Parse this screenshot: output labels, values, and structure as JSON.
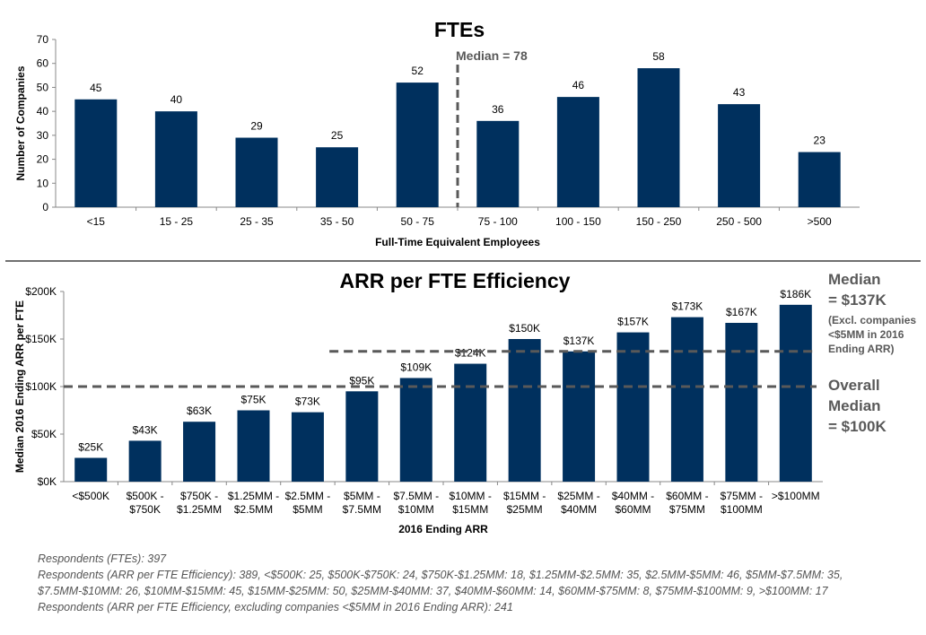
{
  "chart_data": [
    {
      "type": "bar",
      "title": "FTEs",
      "xlabel": "Full-Time Equivalent Employees",
      "ylabel": "Number of Companies",
      "ylim": [
        0,
        70
      ],
      "yticks": [
        0,
        10,
        20,
        30,
        40,
        50,
        60,
        70
      ],
      "categories": [
        "<15",
        "15 - 25",
        "25 - 35",
        "35 - 50",
        "50 - 75",
        "75 - 100",
        "100 - 150",
        "150 - 250",
        "250 - 500",
        ">500"
      ],
      "values": [
        45,
        40,
        29,
        25,
        52,
        36,
        46,
        58,
        43,
        23
      ],
      "data_labels": [
        "45",
        "40",
        "29",
        "25",
        "52",
        "36",
        "46",
        "58",
        "43",
        "23"
      ],
      "bar_color": "#00305e",
      "grid": false,
      "annotations": [
        {
          "text": "Median = 78",
          "type": "vertical-dashed-line",
          "position": "between 50 - 75 and 75 - 100"
        }
      ]
    },
    {
      "type": "bar",
      "title": "ARR per FTE Efficiency",
      "xlabel": "2016 Ending ARR",
      "ylabel": "Median 2016 Ending ARR per FTE",
      "ylim": [
        0,
        200
      ],
      "yticks": [
        0,
        50,
        100,
        150,
        200
      ],
      "ytick_labels": [
        "$0K",
        "$50K",
        "$100K",
        "$150K",
        "$200K"
      ],
      "categories": [
        [
          "<$500K"
        ],
        [
          "$500K -",
          "$750K"
        ],
        [
          "$750K -",
          "$1.25MM"
        ],
        [
          "$1.25MM -",
          "$2.5MM"
        ],
        [
          "$2.5MM -",
          "$5MM"
        ],
        [
          "$5MM -",
          "$7.5MM"
        ],
        [
          "$7.5MM -",
          "$10MM"
        ],
        [
          "$10MM -",
          "$15MM"
        ],
        [
          "$15MM -",
          "$25MM"
        ],
        [
          "$25MM -",
          "$40MM"
        ],
        [
          "$40MM -",
          "$60MM"
        ],
        [
          "$60MM -",
          "$75MM"
        ],
        [
          "$75MM -",
          "$100MM"
        ],
        [
          ">$100MM"
        ]
      ],
      "values": [
        25,
        43,
        63,
        75,
        73,
        95,
        109,
        124,
        150,
        137,
        157,
        173,
        167,
        186
      ],
      "data_labels": [
        "$25K",
        "$43K",
        "$63K",
        "$75K",
        "$73K",
        "$95K",
        "$109K",
        "$124K",
        "$150K",
        "$137K",
        "$157K",
        "$173K",
        "$167K",
        "$186K"
      ],
      "bar_color": "#00305e",
      "grid": false,
      "reference_lines": [
        {
          "value": 137,
          "from_category": 5,
          "label": [
            "Median",
            "= $137K"
          ],
          "note": [
            "(Excl. companies",
            "<$5MM in 2016",
            "Ending ARR)"
          ]
        },
        {
          "value": 100,
          "from_category": 0,
          "label": [
            "Overall",
            "Median",
            "= $100K"
          ]
        }
      ]
    }
  ],
  "footnotes": [
    "Respondents (FTEs): 397",
    "Respondents (ARR per FTE Efficiency): 389, <$500K: 25, $500K-$750K: 24, $750K-$1.25MM: 18, $1.25MM-$2.5MM: 35, $2.5MM-$5MM: 46, $5MM-$7.5MM: 35,",
    "$7.5MM-$10MM: 26, $10MM-$15MM: 45, $15MM-$25MM: 50, $25MM-$40MM: 37, $40MM-$60MM: 14, $60MM-$75MM: 8, $75MM-$100MM: 9, >$100MM: 17",
    "Respondents (ARR per FTE Efficiency, excluding companies <$5MM in 2016 Ending ARR): 241"
  ]
}
